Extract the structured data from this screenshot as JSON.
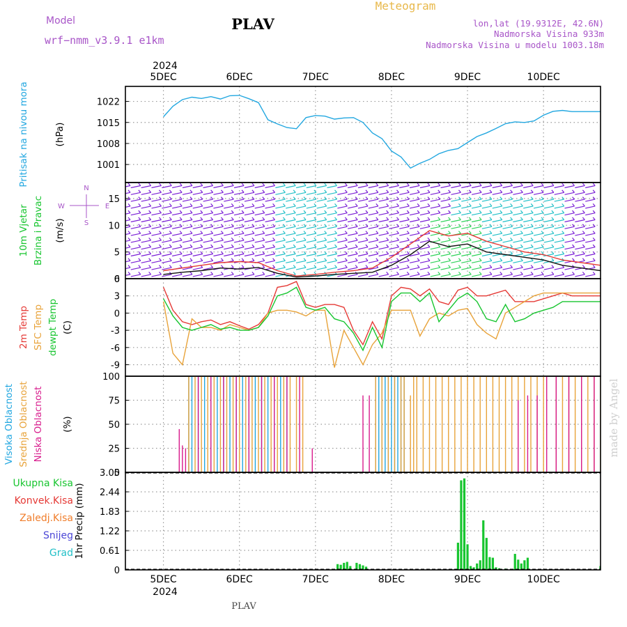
{
  "header": {
    "title": "PLAV",
    "subtitle": "Meteogram",
    "model_label": "Model",
    "model_name": "wrf−nmm_v3.9.1  e1km",
    "lonlat": "lon,lat (19.9312E, 42.6N)",
    "elevation": "Nadmorska Visina 933m",
    "model_elevation": "Nadmorska Visina u modelu 1003.18m",
    "footer": "PLAV",
    "watermark": "made by Angel",
    "colors": {
      "title": "#000000",
      "subtitle": "#e8b84a",
      "info": "#a855c8",
      "footer": "#444444",
      "watermark": "#cfcfcf"
    }
  },
  "time_axis": {
    "year": "2024",
    "day_labels": [
      "5DEC",
      "6DEC",
      "7DEC",
      "8DEC",
      "9DEC",
      "10DEC"
    ]
  },
  "chart_data": [
    {
      "type": "line",
      "panel": "pressure",
      "ylabel": [
        "Pritisak na nivou mora",
        "(hPa)"
      ],
      "ylabel_colors": [
        "#22a7e0",
        "#000000"
      ],
      "ylim": [
        995,
        1027
      ],
      "yticks": [
        1001,
        1008,
        1015,
        1022
      ],
      "x_hours": [
        0,
        3,
        6,
        9,
        12,
        15,
        18,
        21,
        24,
        27,
        30,
        33,
        36,
        39,
        42,
        45,
        48,
        51,
        54,
        57,
        60,
        63,
        66,
        69,
        72,
        75,
        78,
        81,
        84,
        87,
        90,
        93,
        96,
        99,
        102,
        105,
        108,
        111,
        114,
        117,
        120,
        123,
        126,
        129,
        132,
        135,
        138,
        141,
        144
      ],
      "series": [
        {
          "name": "",
          "color": "#22a7e0",
          "values": [
            1016.9,
            1020.4,
            1022.6,
            1023.4,
            1023.0,
            1023.6,
            1022.8,
            1023.9,
            1024.0,
            1022.9,
            1021.6,
            1015.9,
            1014.5,
            1013.3,
            1012.9,
            1016.6,
            1017.3,
            1017.1,
            1016.1,
            1016.5,
            1016.6,
            1015.0,
            1011.5,
            1009.6,
            1005.5,
            1003.5,
            999.8,
            1001.4,
            1002.7,
            1004.6,
            1005.7,
            1006.3,
            1008.3,
            1010.3,
            1011.5,
            1013.0,
            1014.6,
            1015.2,
            1015.0,
            1015.5,
            1017.4,
            1018.7,
            1019.0,
            1018.6,
            1018.6,
            1018.6,
            1018.6,
            1018.6,
            1018.6
          ]
        }
      ]
    },
    {
      "type": "line",
      "panel": "wind",
      "ylabel": [
        "10m Vjetar",
        "Brzina i Pravac",
        "(m/s)"
      ],
      "ylabel_colors": [
        "#17c52f",
        "#17c52f",
        "#000000"
      ],
      "compass": [
        "N",
        "W",
        "E",
        "S"
      ],
      "ylim": [
        0,
        18
      ],
      "yticks": [
        0,
        5,
        10,
        15
      ],
      "x_hours": [
        0,
        6,
        12,
        18,
        24,
        30,
        36,
        42,
        48,
        54,
        60,
        66,
        72,
        78,
        84,
        90,
        96,
        102,
        108,
        114,
        120,
        126,
        132,
        138,
        144
      ],
      "series": [
        {
          "name": "",
          "color": "#111111",
          "values": [
            0.8,
            1.2,
            1.5,
            2.0,
            1.8,
            2.1,
            1.0,
            0.3,
            0.5,
            0.8,
            1.0,
            1.2,
            2.5,
            4.5,
            7.0,
            6.0,
            6.5,
            5.0,
            4.5,
            4.0,
            3.5,
            2.5,
            2.0,
            1.5,
            1.5
          ]
        },
        {
          "name": "",
          "color": "#e53935",
          "values": [
            1.5,
            2.0,
            2.5,
            3.0,
            3.2,
            3.0,
            1.5,
            0.5,
            0.8,
            1.2,
            1.5,
            2.0,
            4.0,
            6.5,
            9.0,
            8.0,
            8.5,
            7.0,
            6.0,
            5.0,
            4.5,
            3.5,
            3.0,
            2.5,
            2.5
          ]
        }
      ]
    },
    {
      "type": "line",
      "panel": "temperature",
      "ylabel": [
        "2m Temp",
        "SFC Temp",
        "dewpt Temp",
        "(C)"
      ],
      "ylabel_colors": [
        "#e53935",
        "#e8a33a",
        "#17c52f",
        "#000000"
      ],
      "ylim": [
        -11,
        6
      ],
      "yticks": [
        -9,
        -6,
        -3,
        0,
        3,
        6
      ],
      "x_hours": [
        0,
        3,
        6,
        9,
        12,
        15,
        18,
        21,
        24,
        27,
        30,
        33,
        36,
        39,
        42,
        45,
        48,
        51,
        54,
        57,
        60,
        63,
        66,
        69,
        72,
        75,
        78,
        81,
        84,
        87,
        90,
        93,
        96,
        99,
        102,
        105,
        108,
        111,
        114,
        117,
        120,
        123,
        126,
        129,
        132,
        135,
        138,
        141,
        144
      ],
      "series": [
        {
          "name": "2m Temp",
          "color": "#e53935",
          "values": [
            4.5,
            0.5,
            -1.5,
            -2.0,
            -1.5,
            -1.2,
            -2.0,
            -1.5,
            -2.2,
            -2.8,
            -2.0,
            0.0,
            4.5,
            4.8,
            5.5,
            1.5,
            1.0,
            1.5,
            1.5,
            1.0,
            -3.0,
            -5.5,
            -1.5,
            -4.5,
            3.0,
            4.5,
            4.2,
            3.0,
            4.2,
            2.0,
            1.5,
            4.0,
            4.5,
            3.0,
            3.0,
            3.5,
            4.0,
            2.0,
            2.0,
            2.0,
            2.5,
            3.0,
            3.5,
            3.0,
            3.0,
            3.0,
            3.0,
            3.0,
            3.0
          ]
        },
        {
          "name": "SFC Temp",
          "color": "#e8a33a",
          "values": [
            2.0,
            -7.0,
            -9.0,
            -1.0,
            -2.5,
            -2.5,
            -3.0,
            -2.0,
            -2.5,
            -3.0,
            -2.5,
            0.0,
            0.5,
            0.5,
            0.2,
            -0.5,
            0.5,
            0.5,
            -9.5,
            -3.0,
            -6.0,
            -9.0,
            -5.5,
            -3.5,
            0.5,
            0.5,
            0.5,
            -4.0,
            -1.0,
            0.0,
            -0.5,
            0.5,
            0.8,
            -2.0,
            -3.5,
            -4.5,
            0.0,
            1.0,
            2.0,
            3.0,
            3.5,
            3.5,
            3.5,
            3.5,
            3.5,
            3.5,
            3.5,
            3.5,
            3.5
          ]
        },
        {
          "name": "dewpt Temp",
          "color": "#17c52f",
          "values": [
            2.5,
            -0.5,
            -2.5,
            -3.0,
            -2.5,
            -2.0,
            -2.8,
            -2.5,
            -3.0,
            -3.0,
            -2.5,
            -0.5,
            3.0,
            3.5,
            4.5,
            1.0,
            0.5,
            1.0,
            -1.0,
            -1.5,
            -3.5,
            -6.5,
            -2.5,
            -6.0,
            2.0,
            3.5,
            3.5,
            2.0,
            3.5,
            -1.5,
            0.5,
            2.5,
            3.5,
            2.0,
            -1.0,
            -1.5,
            1.5,
            -1.5,
            -1.0,
            0.0,
            0.5,
            1.0,
            2.0,
            2.0,
            2.0,
            2.0,
            2.0,
            2.0,
            2.0
          ]
        }
      ]
    },
    {
      "type": "bar",
      "panel": "cloud",
      "ylabel": [
        "Visoka Oblacnost",
        "Srednja Oblacnost",
        "Niska Oblacnost",
        "(%)"
      ],
      "ylabel_colors": [
        "#22a7e0",
        "#e8a33a",
        "#d81b8c",
        "#000000"
      ],
      "ylim": [
        0,
        100
      ],
      "yticks": [
        0,
        25,
        50,
        75,
        100
      ],
      "series": [
        {
          "name": "Visoka Oblacnost",
          "color": "#22a7e0",
          "x_hours": [
            8,
            9,
            11,
            13,
            15,
            17,
            19,
            21,
            23,
            25,
            27,
            29,
            31,
            33,
            35,
            37,
            39,
            67,
            68,
            69,
            70,
            71,
            72,
            73,
            74,
            75,
            76
          ],
          "values": [
            100,
            100,
            100,
            100,
            100,
            100,
            100,
            100,
            100,
            100,
            100,
            100,
            100,
            100,
            100,
            100,
            100,
            100,
            100,
            100,
            100,
            100,
            100,
            100,
            100,
            100,
            100
          ]
        },
        {
          "name": "Srednja Oblacnost",
          "color": "#e8a33a",
          "x_hours": [
            8,
            10,
            12,
            14,
            16,
            18,
            20,
            22,
            24,
            26,
            28,
            30,
            32,
            34,
            36,
            38,
            40,
            42,
            44,
            67,
            69,
            71,
            73,
            75,
            76,
            78,
            79,
            80,
            82,
            84,
            86,
            88,
            90,
            92,
            94,
            96,
            98,
            100,
            102,
            104,
            106,
            108,
            110,
            112,
            114,
            116,
            118,
            120,
            124,
            126,
            128,
            130,
            132,
            134,
            136,
            138,
            140,
            142
          ],
          "values": [
            100,
            100,
            100,
            100,
            100,
            100,
            100,
            100,
            100,
            100,
            100,
            100,
            100,
            100,
            100,
            100,
            100,
            100,
            100,
            100,
            100,
            100,
            100,
            100,
            100,
            80,
            100,
            100,
            100,
            100,
            100,
            100,
            100,
            100,
            100,
            100,
            100,
            100,
            100,
            100,
            100,
            100,
            100,
            100,
            100,
            100,
            100,
            100,
            100,
            100,
            100,
            100,
            100,
            100,
            100,
            100,
            100,
            100
          ]
        },
        {
          "name": "Niska Oblacnost",
          "color": "#d81b8c",
          "x_hours": [
            5,
            6,
            7,
            11,
            15,
            19,
            23,
            27,
            31,
            35,
            39,
            43,
            47,
            63,
            65,
            112,
            115,
            118,
            121,
            124,
            128,
            132,
            136,
            140
          ],
          "values": [
            45,
            28,
            25,
            100,
            100,
            100,
            100,
            100,
            100,
            100,
            100,
            100,
            25,
            80,
            80,
            75,
            80,
            80,
            100,
            100,
            100,
            100,
            100,
            100
          ]
        }
      ]
    },
    {
      "type": "bar",
      "panel": "precipitation",
      "ylabel": [
        "1hr Precip (mm)"
      ],
      "ylabel_colors": [
        "#000000"
      ],
      "legend": [
        {
          "label": "Ukupna Kisa",
          "color": "#17c52f"
        },
        {
          "label": "Konvek.Kisa",
          "color": "#e53935"
        },
        {
          "label": "Zaledj.Kisa",
          "color": "#f07d2a"
        },
        {
          "label": "Snijeg",
          "color": "#4b46d6"
        },
        {
          "label": "Grad",
          "color": "#22c0c8"
        }
      ],
      "ylim": [
        0,
        3.05
      ],
      "yticks": [
        0,
        0.61,
        1.22,
        1.83,
        2.44,
        3.05
      ],
      "series": [
        {
          "name": "Ukupna Kisa",
          "color": "#17c52f",
          "x_hours": [
            55,
            56,
            57,
            58,
            59,
            61,
            62,
            63,
            64,
            93,
            94,
            95,
            96,
            97,
            98,
            99,
            100,
            101,
            102,
            103,
            104,
            105,
            106,
            108,
            111,
            112,
            113,
            114,
            115,
            138,
            140,
            141,
            142,
            143
          ],
          "values": [
            0.18,
            0.16,
            0.22,
            0.25,
            0.12,
            0.22,
            0.18,
            0.14,
            0.1,
            0.85,
            2.8,
            2.86,
            0.8,
            0.12,
            0.08,
            0.2,
            0.3,
            1.55,
            1.0,
            0.4,
            0.38,
            0.08,
            0.05,
            0.04,
            0.5,
            0.32,
            0.2,
            0.3,
            0.38,
            0.12,
            0.04,
            0.1,
            0.18,
            0.12
          ]
        }
      ]
    }
  ]
}
